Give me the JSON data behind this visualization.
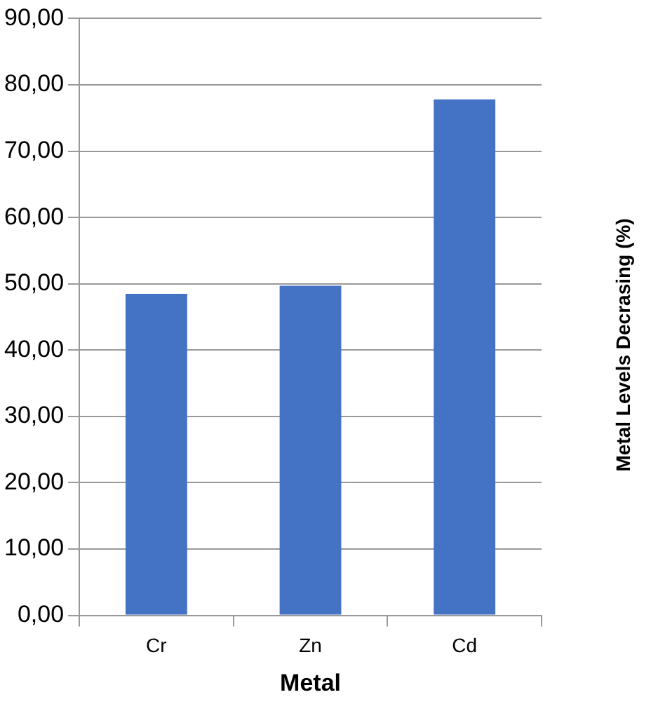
{
  "chart_data": {
    "type": "bar",
    "xlabel": "Metal",
    "ylabel": "Metal Levels Decrasing (%)",
    "categories": [
      "Cr",
      "Zn",
      "Cd"
    ],
    "values": [
      48.5,
      49.7,
      77.8
    ],
    "color": "#4472c4",
    "ylim": [
      0,
      90
    ],
    "yticks": [
      {
        "value": 0,
        "label": "0,00"
      },
      {
        "value": 10,
        "label": "10,00"
      },
      {
        "value": 20,
        "label": "20,00"
      },
      {
        "value": 30,
        "label": "30,00"
      },
      {
        "value": 40,
        "label": "40,00"
      },
      {
        "value": 50,
        "label": "50,00"
      },
      {
        "value": 60,
        "label": "60,00"
      },
      {
        "value": 70,
        "label": "70,00"
      },
      {
        "value": 80,
        "label": "80,00"
      },
      {
        "value": 90,
        "label": "90,00"
      }
    ],
    "grid": "y"
  }
}
